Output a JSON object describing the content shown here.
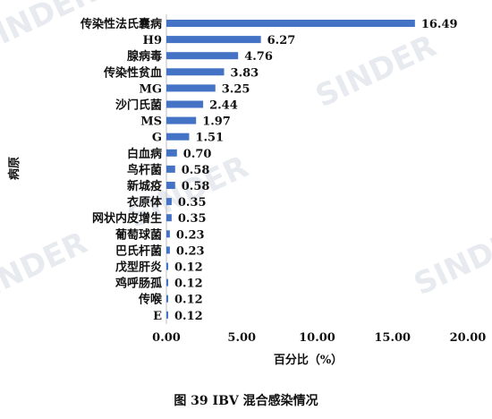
{
  "caption": "图 39   IBV 混合感染情况",
  "watermark_text": "SINDER",
  "bar_color": "#4472c4",
  "chart_data": {
    "type": "bar",
    "orientation": "horizontal",
    "categories": [
      "传染性法氏囊病",
      "H9",
      "腺病毒",
      "传染性贫血",
      "MG",
      "沙门氏菌",
      "MS",
      "G",
      "白血病",
      "鸟杆菌",
      "新城疫",
      "衣原体",
      "网状内皮增生",
      "葡萄球菌",
      "巴氏杆菌",
      "戊型肝炎",
      "鸡呼肠孤",
      "传喉",
      "E"
    ],
    "values": [
      16.49,
      6.27,
      4.76,
      3.83,
      3.25,
      2.44,
      1.97,
      1.51,
      0.7,
      0.58,
      0.58,
      0.35,
      0.35,
      0.23,
      0.23,
      0.12,
      0.12,
      0.12,
      0.12
    ],
    "value_labels": [
      "16.49",
      "6.27",
      "4.76",
      "3.83",
      "3.25",
      "2.44",
      "1.97",
      "1.51",
      "0.70",
      "0.58",
      "0.58",
      "0.35",
      "0.35",
      "0.23",
      "0.23",
      "0.12",
      "0.12",
      "0.12",
      "0.12"
    ],
    "xlim": [
      0,
      20
    ],
    "x_ticks": [
      0,
      5,
      10,
      15,
      20
    ],
    "x_tick_labels": [
      "0.00",
      "5.00",
      "10.00",
      "15.00",
      "20.00"
    ],
    "xlabel": "百分比（%）",
    "ylabel": "病原",
    "grid": false,
    "legend": "none"
  }
}
